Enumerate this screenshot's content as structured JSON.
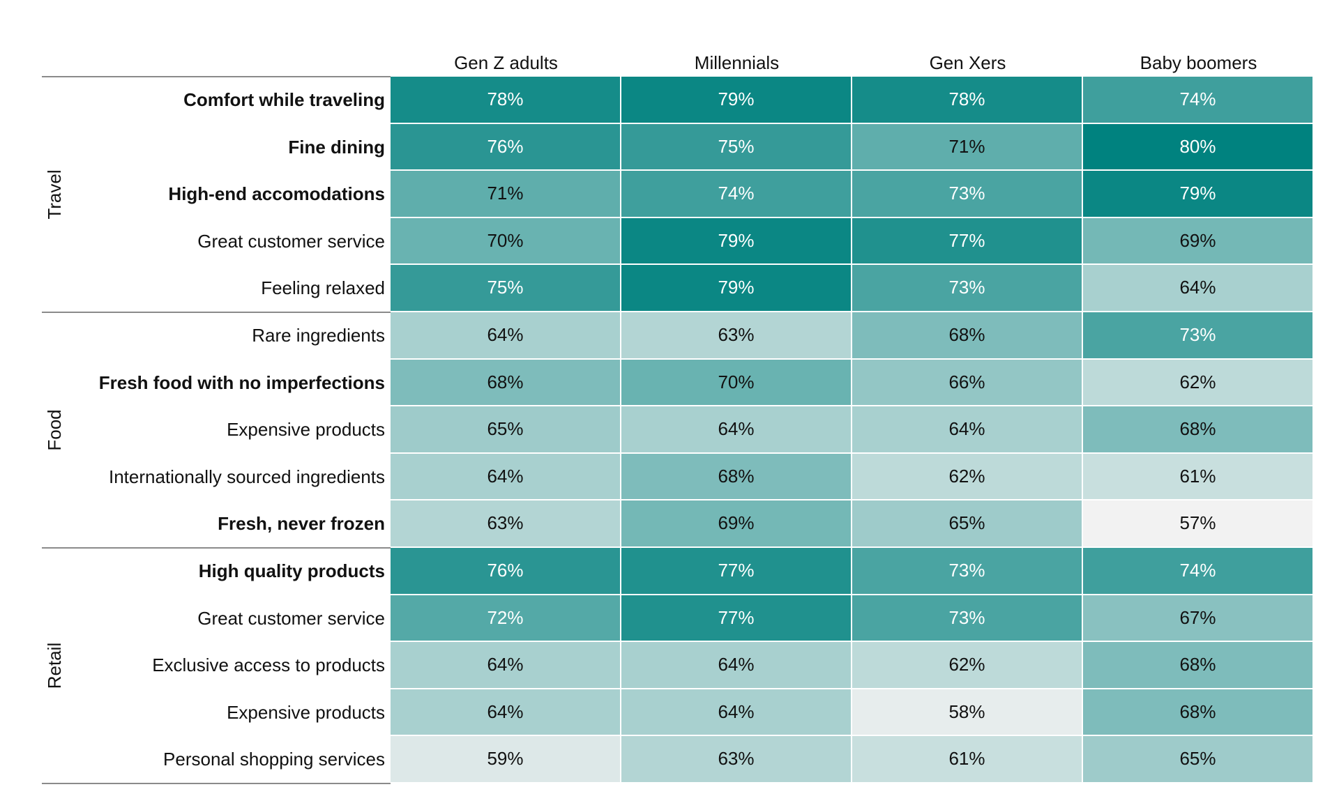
{
  "chart_data": {
    "type": "heatmap",
    "columns": [
      "Gen Z adults",
      "Millennials",
      "Gen Xers",
      "Baby boomers"
    ],
    "groups": [
      {
        "name": "Travel",
        "rows": [
          {
            "label": "Comfort while traveling",
            "bold": true,
            "values": [
              78,
              79,
              78,
              74
            ],
            "display": [
              "78%",
              "79%",
              "78%",
              "74%"
            ]
          },
          {
            "label": "Fine dining",
            "bold": true,
            "values": [
              76,
              75,
              71,
              80
            ],
            "display": [
              "76%",
              "75%",
              "71%",
              "80%"
            ]
          },
          {
            "label": "High-end accomodations",
            "bold": true,
            "values": [
              71,
              74,
              73,
              79
            ],
            "display": [
              "71%",
              "74%",
              "73%",
              "79%"
            ]
          },
          {
            "label": "Great customer service",
            "bold": false,
            "values": [
              70,
              79,
              77,
              69
            ],
            "display": [
              "70%",
              "79%",
              "77%",
              "69%"
            ]
          },
          {
            "label": "Feeling relaxed",
            "bold": false,
            "values": [
              75,
              79,
              73,
              64
            ],
            "display": [
              "75%",
              "79%",
              "73%",
              "64%"
            ]
          }
        ]
      },
      {
        "name": "Food",
        "rows": [
          {
            "label": "Rare ingredients",
            "bold": false,
            "values": [
              64,
              63,
              68,
              73
            ],
            "display": [
              "64%",
              "63%",
              "68%",
              "73%"
            ]
          },
          {
            "label": "Fresh food with no imperfections",
            "bold": true,
            "values": [
              68,
              70,
              66,
              62
            ],
            "display": [
              "68%",
              "70%",
              "66%",
              "62%"
            ]
          },
          {
            "label": "Expensive products",
            "bold": false,
            "values": [
              65,
              64,
              64,
              68
            ],
            "display": [
              "65%",
              "64%",
              "64%",
              "68%"
            ]
          },
          {
            "label": "Internationally sourced ingredients",
            "bold": false,
            "values": [
              64,
              68,
              62,
              61
            ],
            "display": [
              "64%",
              "68%",
              "62%",
              "61%"
            ]
          },
          {
            "label": "Fresh, never frozen",
            "bold": true,
            "values": [
              63,
              69,
              65,
              57
            ],
            "display": [
              "63%",
              "69%",
              "65%",
              "57%"
            ]
          }
        ]
      },
      {
        "name": "Retail",
        "rows": [
          {
            "label": "High quality products",
            "bold": true,
            "values": [
              76,
              77,
              73,
              74
            ],
            "display": [
              "76%",
              "77%",
              "73%",
              "74%"
            ]
          },
          {
            "label": "Great customer service",
            "bold": false,
            "values": [
              72,
              77,
              73,
              67
            ],
            "display": [
              "72%",
              "77%",
              "73%",
              "67%"
            ]
          },
          {
            "label": "Exclusive access to products",
            "bold": false,
            "values": [
              64,
              64,
              62,
              68
            ],
            "display": [
              "64%",
              "64%",
              "62%",
              "68%"
            ]
          },
          {
            "label": "Expensive products",
            "bold": false,
            "values": [
              64,
              64,
              58,
              68
            ],
            "display": [
              "64%",
              "64%",
              "58%",
              "68%"
            ]
          },
          {
            "label": "Personal shopping services",
            "bold": false,
            "values": [
              59,
              63,
              61,
              65
            ],
            "display": [
              "59%",
              "63%",
              "61%",
              "65%"
            ]
          }
        ]
      }
    ],
    "color_scale": {
      "min_value": 57,
      "max_value": 80,
      "low_color": "#f2f2f2",
      "high_color": "#00827f"
    },
    "legend": "none",
    "grid": false
  }
}
